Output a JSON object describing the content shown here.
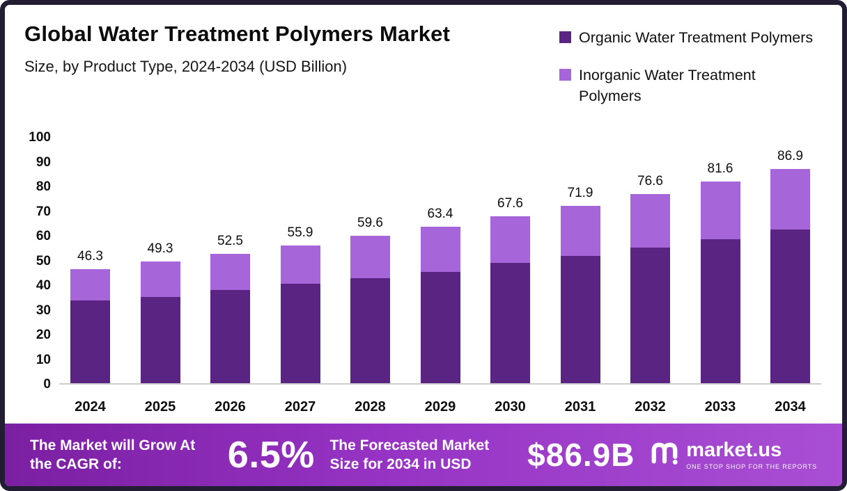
{
  "title": "Global Water Treatment Polymers Market",
  "subtitle": "Size, by Product Type, 2024-2034 (USD Billion)",
  "legend": [
    {
      "label": "Organic Water Treatment Polymers",
      "color": "#5a2483"
    },
    {
      "label": "Inorganic Water Treatment Polymers",
      "color": "#a665d9"
    }
  ],
  "chart_data": {
    "type": "bar",
    "stacked": true,
    "title": "Global Water Treatment Polymers Market Size, by Product Type, 2024-2034 (USD Billion)",
    "categories": [
      "2024",
      "2025",
      "2026",
      "2027",
      "2028",
      "2029",
      "2030",
      "2031",
      "2032",
      "2033",
      "2034"
    ],
    "series": [
      {
        "name": "Organic Water Treatment Polymers",
        "color": "#5a2483",
        "values": [
          33.4,
          35.0,
          37.8,
          40.2,
          42.4,
          45.2,
          48.6,
          51.6,
          55.0,
          58.4,
          62.2
        ]
      },
      {
        "name": "Inorganic Water Treatment Polymers",
        "color": "#a665d9",
        "values": [
          12.9,
          14.3,
          14.7,
          15.7,
          17.2,
          18.2,
          19.0,
          20.3,
          21.6,
          23.2,
          24.7
        ]
      }
    ],
    "totals": [
      "46.3",
      "49.3",
      "52.5",
      "55.9",
      "59.6",
      "63.4",
      "67.6",
      "71.9",
      "76.6",
      "81.6",
      "86.9"
    ],
    "ylim": [
      0,
      100
    ],
    "yticks": [
      0,
      10,
      20,
      30,
      40,
      50,
      60,
      70,
      80,
      90,
      100
    ],
    "xlabel": "",
    "ylabel": "",
    "grid": false,
    "legend_position": "top-right"
  },
  "footer": {
    "cagr_label": "The Market will Grow At the CAGR of:",
    "cagr_value": "6.5%",
    "forecast_label": "The Forecasted Market Size for 2034 in USD",
    "forecast_value": "$86.9B",
    "brand": "market.us",
    "brand_tagline": "ONE STOP SHOP FOR THE REPORTS"
  }
}
